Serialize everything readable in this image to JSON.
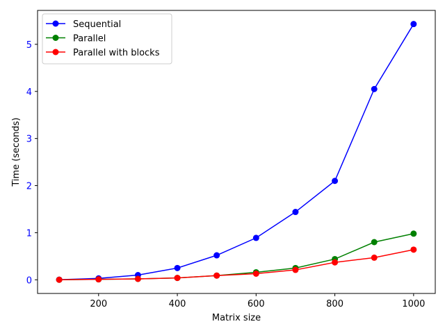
{
  "chart_data": {
    "type": "line",
    "title": "",
    "xlabel": "Matrix size",
    "ylabel": "Time (seconds)",
    "x": [
      100,
      200,
      300,
      400,
      500,
      600,
      700,
      800,
      900,
      1000
    ],
    "xlim": [
      45,
      1055
    ],
    "ylim": [
      -0.29,
      5.72
    ],
    "xticks": [
      200,
      400,
      600,
      800,
      1000
    ],
    "yticks": [
      0,
      1,
      2,
      3,
      4,
      5
    ],
    "ytick_color": "#0000ff",
    "grid": false,
    "legend": "upper-left",
    "series": [
      {
        "name": "Sequential",
        "color": "#0000ff",
        "values": [
          0.003,
          0.03,
          0.1,
          0.25,
          0.52,
          0.89,
          1.44,
          2.1,
          4.05,
          5.43
        ]
      },
      {
        "name": "Parallel",
        "color": "#008000",
        "values": [
          0.001,
          0.01,
          0.02,
          0.04,
          0.09,
          0.16,
          0.25,
          0.44,
          0.8,
          0.98
        ]
      },
      {
        "name": "Parallel with blocks",
        "color": "#ff0000",
        "values": [
          0.001,
          0.01,
          0.02,
          0.04,
          0.09,
          0.13,
          0.21,
          0.37,
          0.47,
          0.64
        ]
      }
    ]
  }
}
